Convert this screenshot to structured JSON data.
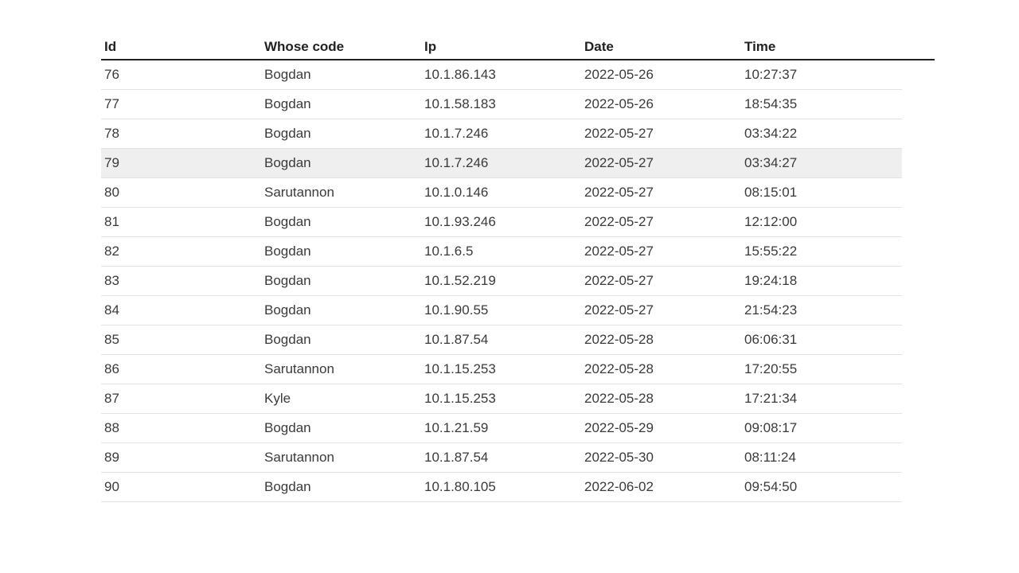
{
  "table": {
    "columns": [
      "Id",
      "Whose code",
      "Ip",
      "Date",
      "Time"
    ],
    "highlighted_row_id": "79",
    "rows": [
      {
        "id": "76",
        "who": "Bogdan",
        "ip": "10.1.86.143",
        "date": "2022-05-26",
        "time": "10:27:37"
      },
      {
        "id": "77",
        "who": "Bogdan",
        "ip": "10.1.58.183",
        "date": "2022-05-26",
        "time": "18:54:35"
      },
      {
        "id": "78",
        "who": "Bogdan",
        "ip": "10.1.7.246",
        "date": "2022-05-27",
        "time": "03:34:22"
      },
      {
        "id": "79",
        "who": "Bogdan",
        "ip": "10.1.7.246",
        "date": "2022-05-27",
        "time": "03:34:27"
      },
      {
        "id": "80",
        "who": "Sarutannon",
        "ip": "10.1.0.146",
        "date": "2022-05-27",
        "time": "08:15:01"
      },
      {
        "id": "81",
        "who": "Bogdan",
        "ip": "10.1.93.246",
        "date": "2022-05-27",
        "time": "12:12:00"
      },
      {
        "id": "82",
        "who": "Bogdan",
        "ip": "10.1.6.5",
        "date": "2022-05-27",
        "time": "15:55:22"
      },
      {
        "id": "83",
        "who": "Bogdan",
        "ip": "10.1.52.219",
        "date": "2022-05-27",
        "time": "19:24:18"
      },
      {
        "id": "84",
        "who": "Bogdan",
        "ip": "10.1.90.55",
        "date": "2022-05-27",
        "time": "21:54:23"
      },
      {
        "id": "85",
        "who": "Bogdan",
        "ip": "10.1.87.54",
        "date": "2022-05-28",
        "time": "06:06:31"
      },
      {
        "id": "86",
        "who": "Sarutannon",
        "ip": "10.1.15.253",
        "date": "2022-05-28",
        "time": "17:20:55"
      },
      {
        "id": "87",
        "who": "Kyle",
        "ip": "10.1.15.253",
        "date": "2022-05-28",
        "time": "17:21:34"
      },
      {
        "id": "88",
        "who": "Bogdan",
        "ip": "10.1.21.59",
        "date": "2022-05-29",
        "time": "09:08:17"
      },
      {
        "id": "89",
        "who": "Sarutannon",
        "ip": "10.1.87.54",
        "date": "2022-05-30",
        "time": "08:11:24"
      },
      {
        "id": "90",
        "who": "Bogdan",
        "ip": "10.1.80.105",
        "date": "2022-06-02",
        "time": "09:54:50"
      }
    ]
  }
}
